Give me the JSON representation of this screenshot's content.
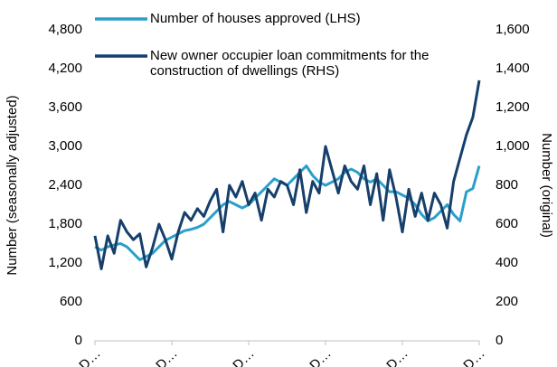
{
  "chart_data": {
    "type": "line",
    "y_label": "Number (seasonally adjusted)",
    "y2_label": "Number (original)",
    "categories": [
      "D…",
      null,
      null,
      null,
      null,
      null,
      null,
      null,
      null,
      null,
      null,
      null,
      "D…",
      null,
      null,
      null,
      null,
      null,
      null,
      null,
      null,
      null,
      null,
      null,
      "D…",
      null,
      null,
      null,
      null,
      null,
      null,
      null,
      null,
      null,
      null,
      null,
      "D…",
      null,
      null,
      null,
      null,
      null,
      null,
      null,
      null,
      null,
      null,
      null,
      "D…",
      null,
      null,
      null,
      null,
      null,
      null,
      null,
      null,
      null,
      null,
      null,
      "D…"
    ],
    "series": [
      {
        "name": "Number of houses approved (LHS)",
        "color": "#2a9fcb",
        "axis": "y",
        "values": [
          1450,
          1400,
          1450,
          1480,
          1500,
          1450,
          1350,
          1250,
          1300,
          1350,
          1450,
          1550,
          1600,
          1650,
          1700,
          1720,
          1750,
          1800,
          1900,
          2000,
          2100,
          2150,
          2100,
          2050,
          2100,
          2200,
          2300,
          2400,
          2500,
          2450,
          2400,
          2500,
          2600,
          2700,
          2550,
          2450,
          2400,
          2450,
          2500,
          2600,
          2650,
          2600,
          2500,
          2450,
          2500,
          2400,
          2300,
          2300,
          2250,
          2200,
          2100,
          1950,
          1850,
          1900,
          2000,
          2100,
          1950,
          1850,
          2300,
          2350,
          2700
        ]
      },
      {
        "name": "New owner occupier loan commitments for the construction of dwellings (RHS)",
        "color": "#163f6b",
        "axis": "y2",
        "values": [
          540,
          370,
          540,
          450,
          620,
          560,
          520,
          550,
          380,
          480,
          600,
          520,
          420,
          560,
          660,
          620,
          680,
          640,
          720,
          780,
          560,
          800,
          740,
          820,
          700,
          760,
          620,
          780,
          740,
          820,
          800,
          700,
          880,
          660,
          820,
          760,
          1000,
          880,
          760,
          900,
          820,
          780,
          900,
          700,
          860,
          620,
          880,
          740,
          560,
          780,
          640,
          760,
          620,
          760,
          700,
          580,
          820,
          940,
          1060,
          1150,
          1340
        ]
      }
    ],
    "ylim": [
      0,
      4800
    ],
    "yticks": [
      0,
      {
        "value": 600,
        "label": "600"
      },
      {
        "value": 1200,
        "label": "1,200"
      },
      {
        "value": 1800,
        "label": "1,800"
      },
      {
        "value": 2400,
        "label": "2,400"
      },
      {
        "value": 3000,
        "label": "3,000"
      },
      {
        "value": 3600,
        "label": "3,600"
      },
      {
        "value": 4200,
        "label": "4,200"
      },
      {
        "value": 4800,
        "label": "4,800"
      }
    ],
    "y2lim": [
      0,
      1600
    ],
    "y2ticks": [
      0,
      200,
      400,
      600,
      800,
      {
        "value": 1000,
        "label": "1,000"
      },
      {
        "value": 1200,
        "label": "1,200"
      },
      {
        "value": 1400,
        "label": "1,400"
      },
      {
        "value": 1600,
        "label": "1,600"
      }
    ],
    "grid": false
  }
}
